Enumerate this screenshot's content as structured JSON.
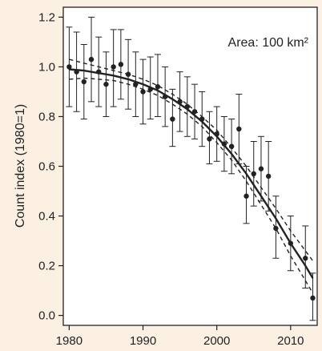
{
  "chart_data": {
    "type": "scatter",
    "title": "",
    "annotation": "Area: 100 km²",
    "xlabel": "",
    "ylabel": "Count index (1980=1)",
    "xlim": [
      1979.2,
      2013.6
    ],
    "ylim": [
      -0.04,
      1.24
    ],
    "x_ticks": [
      1980,
      1990,
      2000,
      2010
    ],
    "x_tick_labels": [
      "1980",
      "1990",
      "2000",
      "2010"
    ],
    "y_ticks": [
      0.0,
      0.2,
      0.4,
      0.6,
      0.8,
      1.0,
      1.2
    ],
    "y_tick_labels": [
      "0.0",
      "0.2",
      "0.4",
      "0.6",
      "0.8",
      "1.0",
      "1.2"
    ],
    "grid": false,
    "colors": {
      "background": "#FBF0E1",
      "plot_background": "#FFFFFF",
      "marks": "#222222"
    },
    "series": [
      {
        "kind": "points_with_error_bars",
        "x": [
          1980,
          1981,
          1982,
          1983,
          1984,
          1985,
          1986,
          1987,
          1988,
          1989,
          1990,
          1991,
          1992,
          1993,
          1994,
          1995,
          1996,
          1997,
          1998,
          1999,
          2000,
          2001,
          2002,
          2003,
          2004,
          2005,
          2006,
          2007,
          2008,
          2009,
          2010,
          2011,
          2012,
          2013
        ],
        "y": [
          1.0,
          0.98,
          0.94,
          1.03,
          0.98,
          0.93,
          1.0,
          1.01,
          0.97,
          0.93,
          0.9,
          0.91,
          0.92,
          0.88,
          0.79,
          0.86,
          0.84,
          0.82,
          0.79,
          0.71,
          0.73,
          0.69,
          0.68,
          0.75,
          0.48,
          0.57,
          0.59,
          0.56,
          0.35,
          null,
          0.29,
          null,
          0.23,
          0.07
        ],
        "y_low": [
          0.84,
          0.82,
          0.79,
          0.86,
          0.84,
          0.8,
          0.84,
          0.87,
          0.83,
          0.8,
          0.77,
          0.79,
          0.8,
          0.76,
          0.68,
          0.74,
          0.72,
          0.71,
          0.68,
          0.61,
          0.62,
          0.58,
          0.57,
          0.61,
          0.37,
          0.44,
          0.46,
          0.42,
          0.23,
          null,
          0.18,
          null,
          0.11,
          -0.02
        ],
        "y_high": [
          1.16,
          1.14,
          1.09,
          1.2,
          1.12,
          1.06,
          1.15,
          1.15,
          1.11,
          1.06,
          1.03,
          1.04,
          1.05,
          1.0,
          0.91,
          0.98,
          0.96,
          0.93,
          0.9,
          0.82,
          0.84,
          0.8,
          0.79,
          0.89,
          0.6,
          0.7,
          0.72,
          0.7,
          0.48,
          null,
          0.4,
          null,
          0.36,
          0.17
        ]
      },
      {
        "kind": "fitted_line",
        "x": [
          1980,
          1982,
          1984,
          1986,
          1988,
          1990,
          1992,
          1994,
          1996,
          1998,
          2000,
          2002,
          2004,
          2006,
          2008,
          2010,
          2012,
          2013
        ],
        "y": [
          0.99,
          0.985,
          0.975,
          0.965,
          0.95,
          0.93,
          0.905,
          0.87,
          0.83,
          0.78,
          0.72,
          0.65,
          0.57,
          0.48,
          0.39,
          0.29,
          0.2,
          0.15
        ]
      },
      {
        "kind": "upper_confidence",
        "x": [
          1980,
          1982,
          1984,
          1986,
          1988,
          1990,
          1992,
          1994,
          1996,
          1998,
          2000,
          2002,
          2004,
          2006,
          2008,
          2010,
          2012,
          2013
        ],
        "y": [
          1.03,
          1.015,
          1.0,
          0.985,
          0.97,
          0.95,
          0.925,
          0.89,
          0.85,
          0.8,
          0.745,
          0.675,
          0.6,
          0.515,
          0.43,
          0.34,
          0.26,
          0.22
        ]
      },
      {
        "kind": "lower_confidence",
        "x": [
          1980,
          1982,
          1984,
          1986,
          1988,
          1990,
          1992,
          1994,
          1996,
          1998,
          2000,
          2002,
          2004,
          2006,
          2008,
          2010,
          2012,
          2013
        ],
        "y": [
          0.95,
          0.955,
          0.95,
          0.945,
          0.93,
          0.91,
          0.885,
          0.85,
          0.81,
          0.76,
          0.695,
          0.625,
          0.54,
          0.445,
          0.35,
          0.24,
          0.14,
          0.09
        ]
      }
    ]
  }
}
